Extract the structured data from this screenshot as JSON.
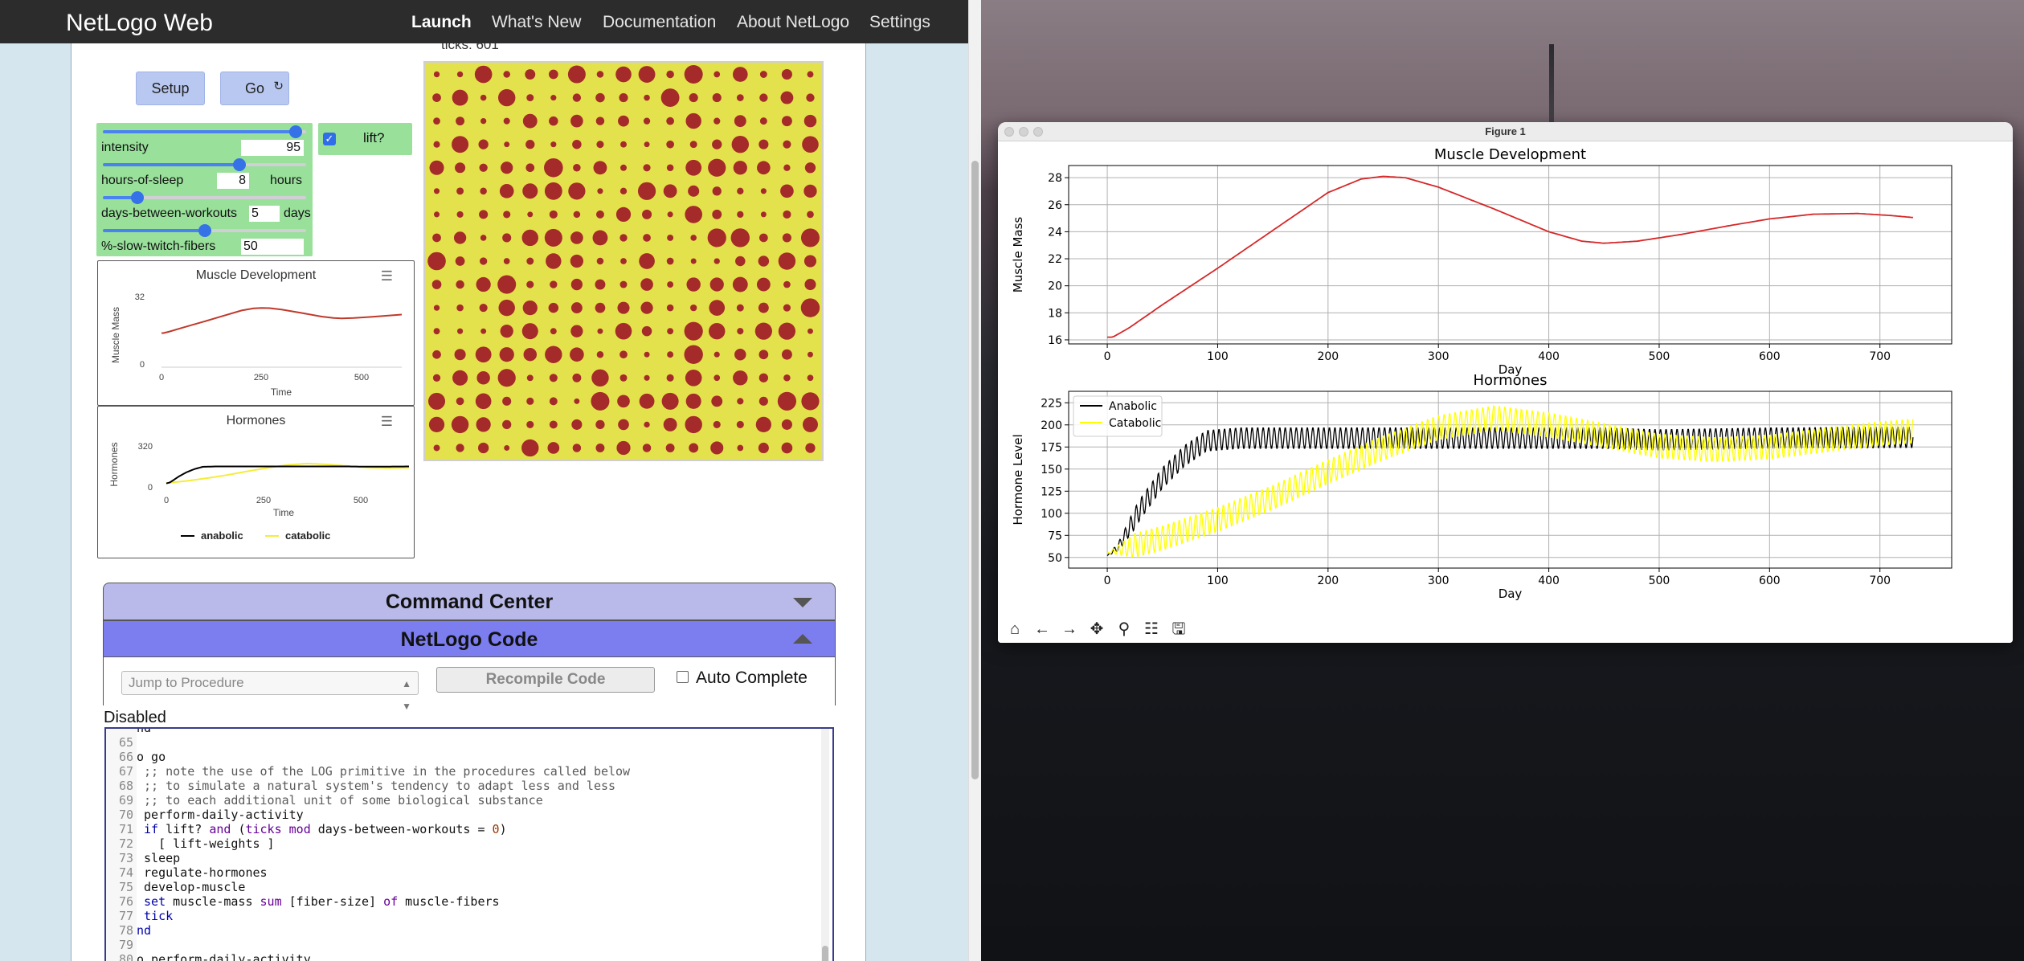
{
  "navbar": {
    "brand": "NetLogo Web",
    "links": [
      "Launch",
      "What's New",
      "Documentation",
      "About NetLogo",
      "Settings"
    ]
  },
  "model": {
    "ticks_label": "ticks: 601",
    "buttons": {
      "setup": "Setup",
      "go": "Go",
      "go_cycle_icon": "↻"
    },
    "sliders": [
      {
        "name": "intensity",
        "value": "95",
        "unit": "",
        "level": 0.95
      },
      {
        "name": "hours-of-sleep",
        "value": "8",
        "unit": "hours",
        "level": 0.67
      },
      {
        "name": "days-between-workouts",
        "value": "5",
        "unit": "days",
        "level": 0.17
      },
      {
        "name": "%-slow-twitch-fibers",
        "value": "50",
        "unit": "",
        "level": 0.5
      }
    ],
    "switch": {
      "name": "lift?",
      "check": "✓"
    },
    "world_colors": {
      "patch": "#e4e24c",
      "fiber": "#a52a2a"
    },
    "muscle_plot": {
      "title": "Muscle Development",
      "ylabel": "Muscle Mass",
      "xlabel": "Time",
      "ticks_y": [
        "32",
        "0"
      ],
      "ticks_x": [
        "0",
        "250",
        "500"
      ],
      "menu_icon": "☰"
    },
    "hormone_plot": {
      "title": "Hormones",
      "ylabel": "Hormones",
      "xlabel": "Time",
      "ticks_y": [
        "320",
        "0"
      ],
      "ticks_x": [
        "0",
        "250",
        "500"
      ],
      "legend": [
        "anabolic",
        "catabolic"
      ],
      "menu_icon": "☰"
    }
  },
  "command_center": {
    "title": "Command Center"
  },
  "code_tab": {
    "title": "NetLogo Code",
    "jump_placeholder": "Jump to Procedure",
    "recompile": "Recompile Code",
    "auto_complete": "Auto Complete",
    "status": "Disabled",
    "lines": [
      {
        "num": "",
        "parts": [
          [
            "",
            "nd"
          ]
        ]
      },
      {
        "num": "65",
        "parts": [
          [
            "",
            ""
          ]
        ]
      },
      {
        "num": "66",
        "parts": [
          [
            "",
            "o go"
          ]
        ]
      },
      {
        "num": "67",
        "parts": [
          [
            "cm",
            " ;; note the use of the LOG primitive in the procedures called below"
          ]
        ]
      },
      {
        "num": "68",
        "parts": [
          [
            "cm",
            " ;; to simulate a natural system's tendency to adapt less and less"
          ]
        ]
      },
      {
        "num": "69",
        "parts": [
          [
            "cm",
            " ;; to each additional unit of some biological substance"
          ]
        ]
      },
      {
        "num": "70",
        "parts": [
          [
            "",
            " perform-daily-activity"
          ]
        ]
      },
      {
        "num": "71",
        "parts": [
          [
            "kw",
            " if "
          ],
          [
            "",
            "lift? "
          ],
          [
            "pr",
            "and "
          ],
          [
            "",
            "("
          ],
          [
            "pr",
            "ticks "
          ],
          [
            "pr",
            "mod "
          ],
          [
            "",
            "days-between-workouts = "
          ],
          [
            "num",
            "0"
          ],
          [
            "",
            ")"
          ]
        ]
      },
      {
        "num": "72",
        "parts": [
          [
            "",
            "   [ lift-weights ]"
          ]
        ]
      },
      {
        "num": "73",
        "parts": [
          [
            "",
            " sleep"
          ]
        ]
      },
      {
        "num": "74",
        "parts": [
          [
            "",
            " regulate-hormones"
          ]
        ]
      },
      {
        "num": "75",
        "parts": [
          [
            "",
            " develop-muscle"
          ]
        ]
      },
      {
        "num": "76",
        "parts": [
          [
            "kw",
            " set "
          ],
          [
            "",
            "muscle-mass "
          ],
          [
            "pr",
            "sum "
          ],
          [
            "",
            "[fiber-size] "
          ],
          [
            "pr",
            "of "
          ],
          [
            "",
            "muscle-fibers"
          ]
        ]
      },
      {
        "num": "77",
        "parts": [
          [
            "kw",
            " tick"
          ]
        ]
      },
      {
        "num": "78",
        "parts": [
          [
            "kw",
            "nd"
          ]
        ]
      },
      {
        "num": "79",
        "parts": [
          [
            "",
            ""
          ]
        ]
      },
      {
        "num": "80",
        "parts": [
          [
            "",
            "o perform-daily-activity"
          ]
        ]
      }
    ]
  },
  "figure": {
    "window_title": "Figure 1",
    "toolbar_icons": [
      "home-icon",
      "back-icon",
      "forward-icon",
      "pan-icon",
      "zoom-icon",
      "configure-icon",
      "save-icon"
    ],
    "toolbar_glyphs": [
      "⌂",
      "←",
      "→",
      "✥",
      "⚲",
      "☷",
      "🖫"
    ]
  },
  "chart_data": [
    {
      "type": "line",
      "title": "Muscle Development",
      "xlabel": "Day",
      "ylabel": "Muscle Mass",
      "xlim": [
        -35,
        765
      ],
      "ylim": [
        15.7,
        28.9
      ],
      "xticks": [
        0,
        100,
        200,
        300,
        400,
        500,
        600,
        700
      ],
      "yticks": [
        16,
        18,
        20,
        22,
        24,
        26,
        28
      ],
      "grid": true,
      "series": [
        {
          "color": "#d62728",
          "x": [
            0,
            5,
            20,
            50,
            100,
            150,
            200,
            230,
            250,
            270,
            300,
            350,
            400,
            430,
            450,
            480,
            520,
            560,
            600,
            640,
            680,
            710,
            730
          ],
          "y": [
            16.2,
            16.2,
            16.9,
            18.6,
            21.3,
            24.1,
            26.9,
            27.9,
            28.1,
            28.0,
            27.3,
            25.7,
            24.0,
            23.3,
            23.15,
            23.3,
            23.8,
            24.4,
            24.95,
            25.3,
            25.35,
            25.2,
            25.05
          ]
        }
      ]
    },
    {
      "type": "line",
      "title": "Hormones",
      "xlabel": "Day",
      "ylabel": "Hormone Level",
      "xlim": [
        -35,
        765
      ],
      "ylim": [
        38,
        238
      ],
      "xticks": [
        0,
        100,
        200,
        300,
        400,
        500,
        600,
        700
      ],
      "yticks": [
        50,
        75,
        100,
        125,
        150,
        175,
        200,
        225
      ],
      "grid": true,
      "legend": "top-left",
      "series": [
        {
          "name": "Anabolic",
          "color": "#000000",
          "x": [
            0,
            10,
            30,
            50,
            70,
            90,
            120,
            200,
            300,
            400,
            450,
            500,
            600,
            730
          ],
          "y": [
            52,
            62,
            105,
            140,
            165,
            182,
            185,
            185,
            185,
            185,
            185,
            183,
            185,
            186
          ],
          "amplitude": 12
        },
        {
          "name": "Catabolic",
          "color": "#ffff00",
          "x": [
            0,
            20,
            50,
            100,
            150,
            200,
            250,
            300,
            350,
            400,
            450,
            500,
            550,
            600,
            650,
            700,
            730
          ],
          "y": [
            55,
            62,
            72,
            93,
            118,
            147,
            174,
            197,
            208,
            200,
            188,
            176,
            172,
            175,
            183,
            190,
            193
          ],
          "amplitude": 14
        }
      ]
    }
  ]
}
